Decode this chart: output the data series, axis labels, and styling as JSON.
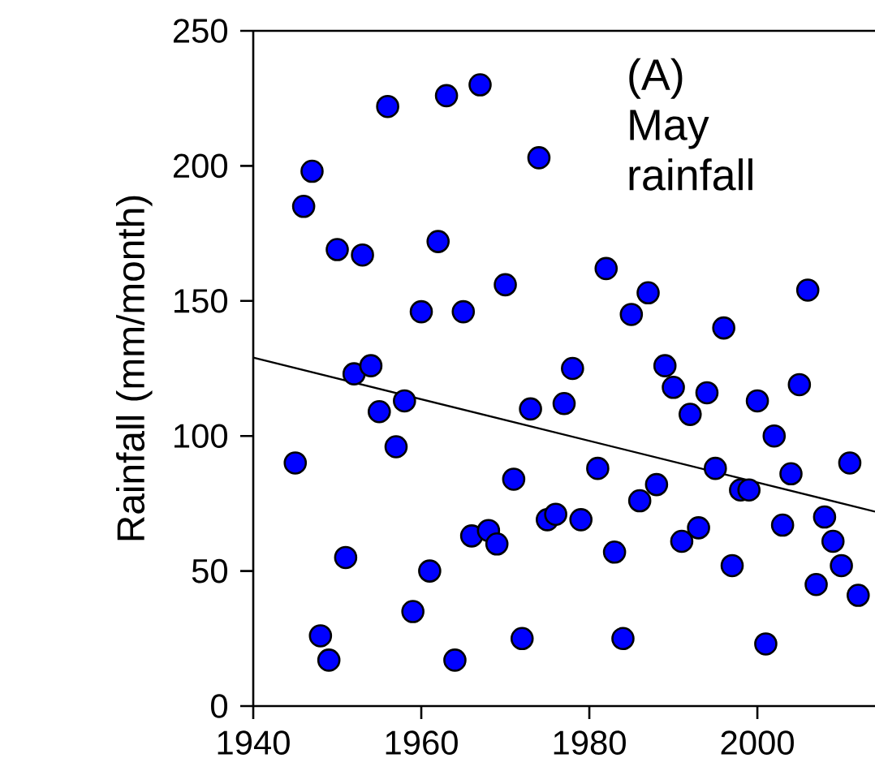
{
  "chart_data": {
    "type": "scatter",
    "ylabel": "Rainfall (mm/month)",
    "annotations": [
      "(A) May rainfall"
    ],
    "xlim": [
      1940,
      2014
    ],
    "ylim": [
      0,
      250
    ],
    "xticks": [
      1940,
      1960,
      1980,
      2000
    ],
    "yticks": [
      0,
      50,
      100,
      150,
      200,
      250
    ],
    "series": [
      {
        "color": "#0000ff",
        "marker": "circle",
        "x": [
          1945,
          1946,
          1947,
          1948,
          1949,
          1950,
          1951,
          1952,
          1953,
          1954,
          1955,
          1956,
          1957,
          1958,
          1959,
          1960,
          1961,
          1962,
          1963,
          1964,
          1965,
          1966,
          1967,
          1968,
          1969,
          1970,
          1971,
          1972,
          1973,
          1974,
          1975,
          1976,
          1977,
          1978,
          1979,
          1981,
          1982,
          1983,
          1984,
          1985,
          1986,
          1987,
          1988,
          1989,
          1990,
          1991,
          1992,
          1993,
          1994,
          1995,
          1996,
          1997,
          1998,
          1999,
          2000,
          2001,
          2002,
          2003,
          2004,
          2005,
          2006,
          2007,
          2008,
          2009,
          2010,
          2011,
          2012
        ],
        "values": [
          90,
          185,
          198,
          26,
          17,
          169,
          55,
          123,
          167,
          126,
          109,
          222,
          96,
          113,
          35,
          146,
          50,
          172,
          226,
          17,
          146,
          63,
          230,
          65,
          60,
          156,
          84,
          25,
          110,
          203,
          69,
          71,
          112,
          125,
          69,
          88,
          162,
          57,
          25,
          145,
          76,
          153,
          82,
          126,
          118,
          61,
          108,
          66,
          116,
          88,
          140,
          52,
          80,
          80,
          113,
          23,
          100,
          67,
          86,
          119,
          154,
          45,
          70,
          61,
          52,
          90,
          41
        ]
      },
      {
        "type": "line",
        "color": "#000000",
        "marker": "none",
        "x": [
          1940,
          2014
        ],
        "values": [
          129,
          72
        ]
      }
    ]
  }
}
